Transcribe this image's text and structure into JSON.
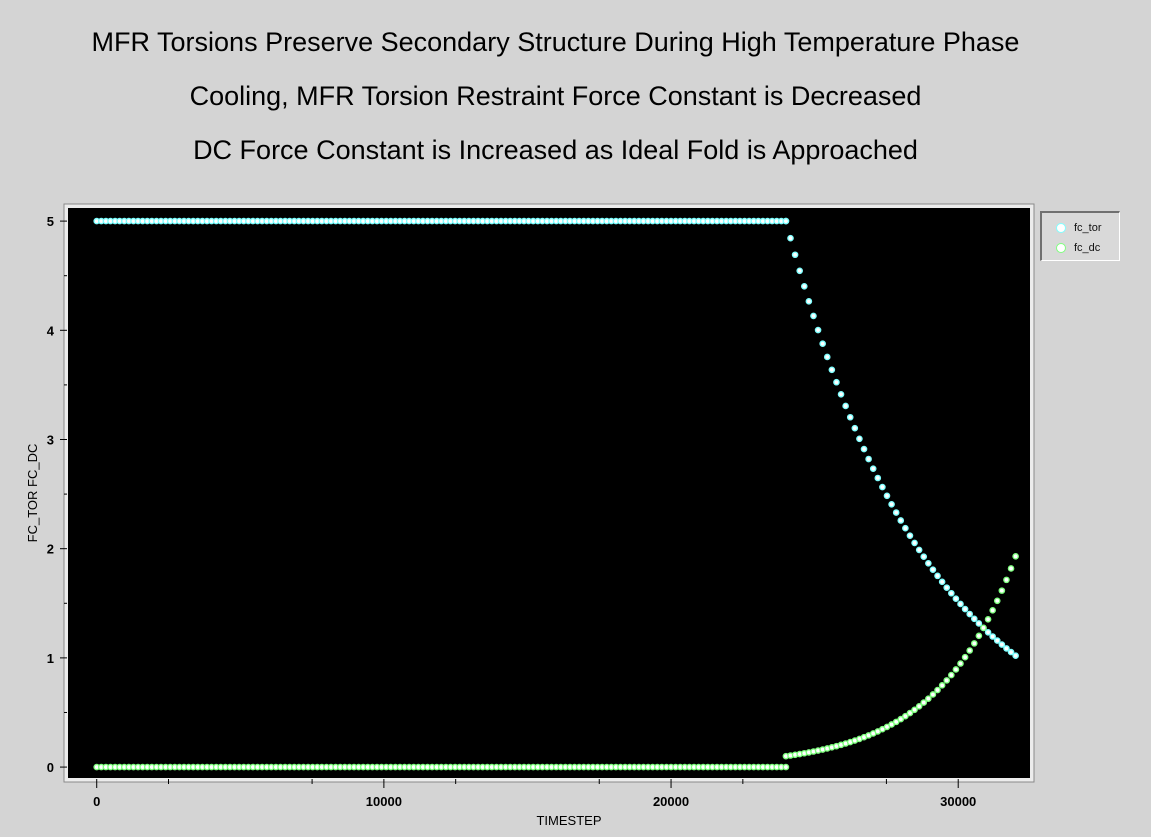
{
  "titles": [
    "MFR Torsions Preserve Secondary Structure During High Temperature Phase",
    "Cooling, MFR Torsion Restraint Force Constant is Decreased",
    "DC Force Constant is Increased as Ideal Fold is Approached"
  ],
  "legend": [
    {
      "label": "fc_tor",
      "color": "#7fffff"
    },
    {
      "label": "fc_dc",
      "color": "#7fff7f"
    }
  ],
  "chart_data": {
    "type": "scatter",
    "xlabel": "TIMESTEP",
    "ylabel": "FC_TOR FC_DC",
    "xlim": [
      -1000,
      32500
    ],
    "ylim": [
      -0.1,
      5.12
    ],
    "xticks": [
      0,
      10000,
      20000,
      30000
    ],
    "yticks": [
      0,
      1,
      2,
      3,
      4,
      5
    ],
    "grid": false,
    "legend_position": "top-right, outside plot",
    "background": "#000000",
    "series": [
      {
        "name": "fc_tor",
        "color": "#7fffff",
        "segments": [
          {
            "kind": "constant",
            "x_start": 0,
            "x_end": 24000,
            "y": 5.0
          },
          {
            "kind": "decay",
            "x_start": 24000,
            "x_end": 32000,
            "y_start": 5.0,
            "y_end": 1.02
          }
        ]
      },
      {
        "name": "fc_dc",
        "color": "#7fff7f",
        "segments": [
          {
            "kind": "constant",
            "x_start": 0,
            "x_end": 24000,
            "y": 0.0
          },
          {
            "kind": "growth",
            "x_start": 24000,
            "x_end": 32000,
            "y_start": 0.1,
            "y_end": 1.93
          }
        ]
      }
    ]
  }
}
